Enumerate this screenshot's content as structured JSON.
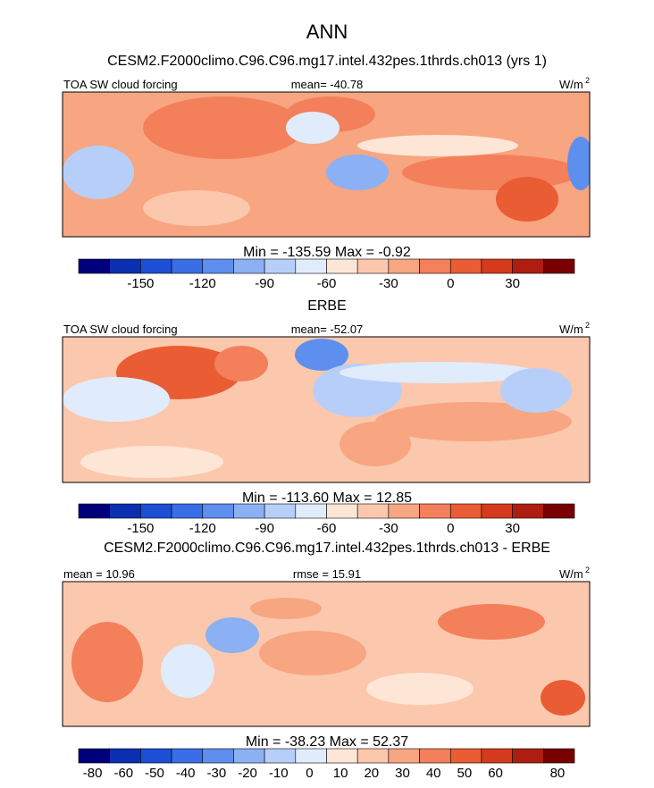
{
  "title": "ANN",
  "panels": [
    {
      "title": "CESM2.F2000climo.C96.C96.mg17.intel.432pes.1thrds.ch013 (yrs 1)",
      "left_label": "TOA SW cloud forcing",
      "center_label": "mean= -40.78",
      "units": "W/m",
      "units_exp": "2",
      "stats": "Min = -135.59 Max =  -0.92",
      "colorbar": {
        "colors": [
          "#00007a",
          "#0a2fb0",
          "#1c4fd4",
          "#3a6ee6",
          "#5f8fee",
          "#8bb0f4",
          "#b7cff8",
          "#e0ecfb",
          "#fde6d6",
          "#fbc8ad",
          "#f8a582",
          "#f3805a",
          "#ea5c33",
          "#d53a1c",
          "#ae1e10",
          "#780000"
        ],
        "labels": [
          "-150",
          "-120",
          "-90",
          "-60",
          "-30",
          "0",
          "30"
        ]
      }
    },
    {
      "title": "ERBE",
      "left_label": "TOA SW cloud forcing",
      "center_label": "mean= -52.07",
      "units": "W/m",
      "units_exp": "2",
      "stats": "Min = -113.60 Max =  12.85",
      "colorbar": {
        "colors": [
          "#00007a",
          "#0a2fb0",
          "#1c4fd4",
          "#3a6ee6",
          "#5f8fee",
          "#8bb0f4",
          "#b7cff8",
          "#e0ecfb",
          "#fde6d6",
          "#fbc8ad",
          "#f8a582",
          "#f3805a",
          "#ea5c33",
          "#d53a1c",
          "#ae1e10",
          "#780000"
        ],
        "labels": [
          "-150",
          "-120",
          "-90",
          "-60",
          "-30",
          "0",
          "30"
        ]
      }
    },
    {
      "title": "CESM2.F2000climo.C96.C96.mg17.intel.432pes.1thrds.ch013 - ERBE",
      "left_label": "mean =  10.96",
      "center_label": "rmse =  15.91",
      "units": "W/m",
      "units_exp": "2",
      "stats": "Min = -38.23 Max =  52.37",
      "colorbar": {
        "colors": [
          "#00007a",
          "#0a2fb0",
          "#1c4fd4",
          "#3a6ee6",
          "#5f8fee",
          "#8bb0f4",
          "#b7cff8",
          "#e0ecfb",
          "#fde6d6",
          "#fbc8ad",
          "#f8a582",
          "#f3805a",
          "#ea5c33",
          "#d53a1c",
          "#ae1e10",
          "#780000"
        ],
        "labels": [
          "-80",
          "-60",
          "-50",
          "-40",
          "-30",
          "-20",
          "-10",
          "0",
          "10",
          "20",
          "30",
          "40",
          "50",
          "60",
          "80"
        ]
      }
    }
  ]
}
